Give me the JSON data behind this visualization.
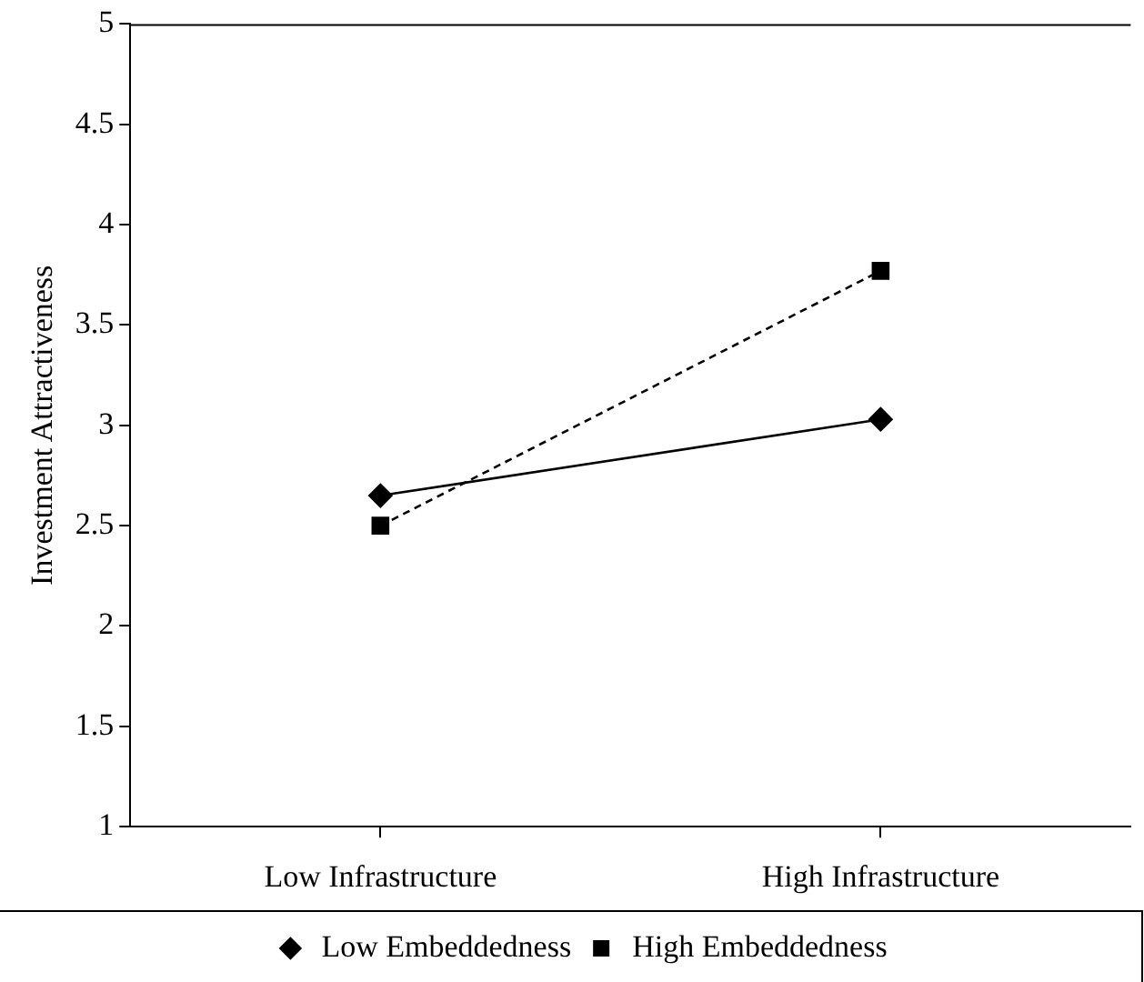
{
  "chart_data": {
    "type": "line",
    "ylabel": "Investment Attractiveness",
    "categories": [
      "Low Infrastructure",
      "High Infrastructure"
    ],
    "series": [
      {
        "name": "Low Embeddedness",
        "color": "#000000",
        "values": [
          2.65,
          3.03
        ],
        "marker": "diamond",
        "line_style": "solid"
      },
      {
        "name": "High Embeddedness",
        "color": "#000000",
        "values": [
          2.5,
          3.77
        ],
        "marker": "square",
        "line_style": "dashed"
      }
    ],
    "ylim": [
      1,
      5
    ],
    "yticks": [
      1,
      1.5,
      2,
      2.5,
      3,
      3.5,
      4,
      4.5,
      5
    ],
    "grid": false,
    "legend": "bottom"
  }
}
